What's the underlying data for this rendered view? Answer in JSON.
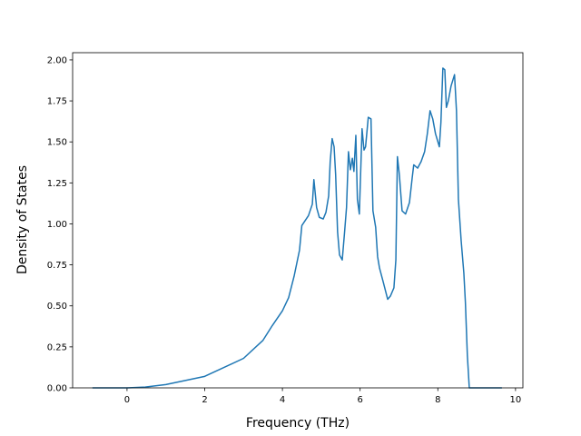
{
  "chart_data": {
    "type": "line",
    "xlabel": "Frequency (THz)",
    "ylabel": "Density of States",
    "xlim": [
      -1.4,
      10.19
    ],
    "ylim": [
      0,
      2.044
    ],
    "xticks": [
      0,
      2,
      4,
      6,
      8,
      10
    ],
    "yticks": [
      {
        "value": 0,
        "label": "0.00"
      },
      {
        "value": 0.25,
        "label": "0.25"
      },
      {
        "value": 0.5,
        "label": "0.50"
      },
      {
        "value": 0.75,
        "label": "0.75"
      },
      {
        "value": 1,
        "label": "1.00"
      },
      {
        "value": 1.25,
        "label": "1.25"
      },
      {
        "value": 1.5,
        "label": "1.50"
      },
      {
        "value": 1.75,
        "label": "1.75"
      },
      {
        "value": 2,
        "label": "2.00"
      }
    ],
    "series": [
      {
        "color": "#1f77b4",
        "x": [
          -0.89,
          0,
          0.47,
          1.0,
          2.0,
          3.0,
          3.5,
          3.74,
          4.0,
          4.16,
          4.3,
          4.44,
          4.5,
          4.67,
          4.77,
          4.81,
          4.88,
          4.95,
          5.05,
          5.12,
          5.19,
          5.23,
          5.28,
          5.33,
          5.37,
          5.42,
          5.47,
          5.54,
          5.6,
          5.65,
          5.7,
          5.75,
          5.8,
          5.84,
          5.89,
          5.93,
          5.98,
          6.05,
          6.1,
          6.14,
          6.21,
          6.28,
          6.33,
          6.4,
          6.45,
          6.5,
          6.59,
          6.71,
          6.78,
          6.87,
          6.92,
          6.96,
          7.01,
          7.08,
          7.17,
          7.27,
          7.34,
          7.38,
          7.48,
          7.57,
          7.66,
          7.73,
          7.8,
          7.87,
          7.94,
          8.04,
          8.08,
          8.13,
          8.18,
          8.22,
          8.27,
          8.34,
          8.43,
          8.48,
          8.53,
          8.6,
          8.67,
          8.71,
          8.76,
          8.81,
          9.65
        ],
        "values": [
          0,
          0,
          0.005,
          0.02,
          0.07,
          0.18,
          0.29,
          0.38,
          0.47,
          0.55,
          0.68,
          0.84,
          0.99,
          1.05,
          1.12,
          1.27,
          1.1,
          1.04,
          1.03,
          1.07,
          1.17,
          1.38,
          1.52,
          1.47,
          1.3,
          0.95,
          0.81,
          0.78,
          0.95,
          1.1,
          1.44,
          1.33,
          1.4,
          1.32,
          1.54,
          1.15,
          1.06,
          1.58,
          1.45,
          1.47,
          1.65,
          1.64,
          1.08,
          0.98,
          0.8,
          0.73,
          0.65,
          0.54,
          0.56,
          0.61,
          0.78,
          1.41,
          1.3,
          1.08,
          1.06,
          1.13,
          1.28,
          1.36,
          1.34,
          1.38,
          1.44,
          1.55,
          1.69,
          1.64,
          1.55,
          1.47,
          1.62,
          1.95,
          1.94,
          1.71,
          1.75,
          1.84,
          1.91,
          1.69,
          1.15,
          0.9,
          0.7,
          0.52,
          0.2,
          0,
          0
        ]
      }
    ]
  }
}
